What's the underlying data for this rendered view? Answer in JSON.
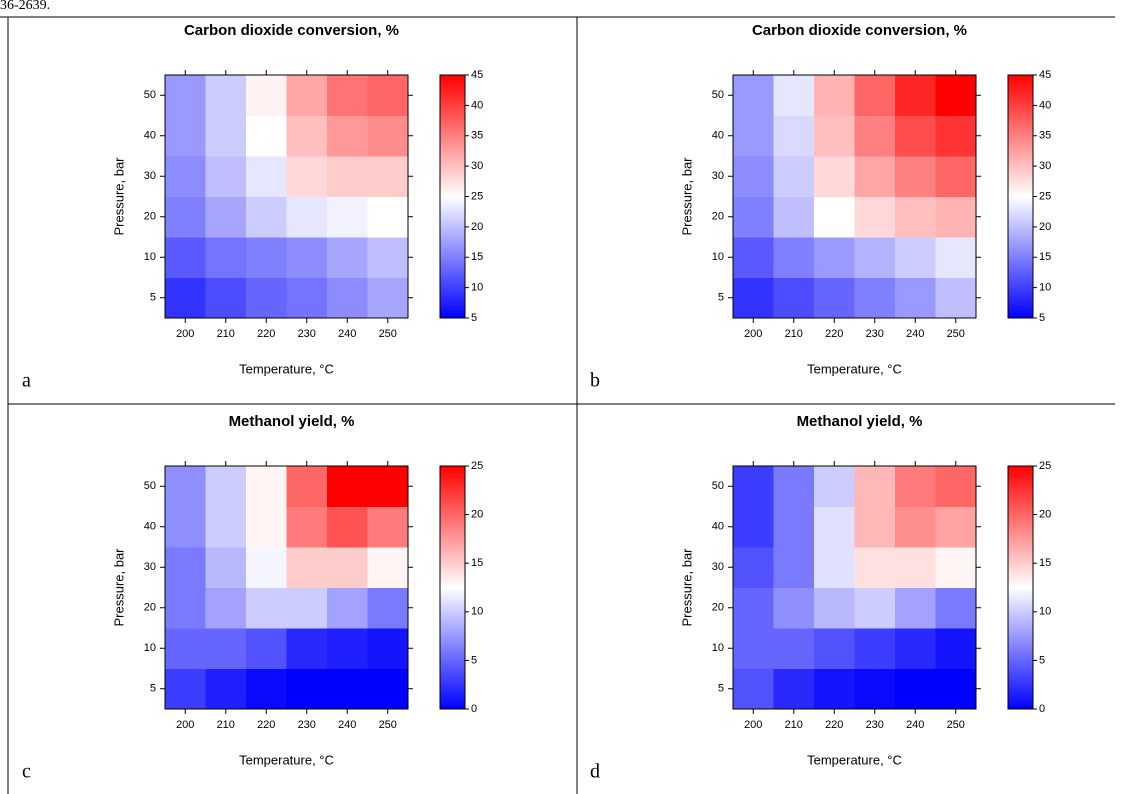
{
  "page_text": "36-2639.",
  "chart_data": [
    {
      "type": "heatmap",
      "title": "Carbon dioxide conversion, %",
      "x_label": "Temperature, °C",
      "y_label": "Pressure, bar",
      "panel_label": "a",
      "x": [
        200,
        210,
        220,
        230,
        240,
        250
      ],
      "y": [
        5,
        10,
        20,
        30,
        40,
        50
      ],
      "values": [
        [
          9,
          11,
          13,
          14,
          16,
          18
        ],
        [
          12,
          14,
          15,
          16,
          18,
          20
        ],
        [
          15,
          18,
          21,
          23,
          24,
          25
        ],
        [
          16,
          20,
          23,
          28,
          29,
          29
        ],
        [
          17,
          21,
          25,
          30,
          33,
          34
        ],
        [
          17,
          21,
          26,
          32,
          36,
          37
        ]
      ],
      "clim": [
        5,
        45
      ],
      "cticks": [
        5,
        10,
        15,
        20,
        25,
        30,
        35,
        40,
        45
      ],
      "colormap": [
        "#0000ff",
        "#ffffff",
        "#ff0000"
      ]
    },
    {
      "type": "heatmap",
      "title": "Carbon dioxide conversion, %",
      "x_label": "Temperature, °C",
      "y_label": "Pressure, bar",
      "panel_label": "b",
      "x": [
        200,
        210,
        220,
        230,
        240,
        250
      ],
      "y": [
        5,
        10,
        20,
        30,
        40,
        50
      ],
      "values": [
        [
          9,
          11,
          13,
          15,
          17,
          20
        ],
        [
          12,
          15,
          17,
          19,
          21,
          23
        ],
        [
          15,
          20,
          25,
          28,
          30,
          31
        ],
        [
          16,
          21,
          28,
          32,
          35,
          37
        ],
        [
          17,
          22,
          30,
          35,
          39,
          41
        ],
        [
          17,
          23,
          31,
          37,
          42,
          45
        ]
      ],
      "clim": [
        5,
        45
      ],
      "cticks": [
        5,
        10,
        15,
        20,
        25,
        30,
        35,
        40,
        45
      ],
      "colormap": [
        "#0000ff",
        "#ffffff",
        "#ff0000"
      ]
    },
    {
      "type": "heatmap",
      "title": "Methanol yield, %",
      "x_label": "Temperature, °C",
      "y_label": "Pressure, bar",
      "panel_label": "c",
      "x": [
        200,
        210,
        220,
        230,
        240,
        250
      ],
      "y": [
        5,
        10,
        20,
        30,
        40,
        50
      ],
      "values": [
        [
          3,
          1.5,
          0.5,
          0,
          0,
          0
        ],
        [
          5,
          5,
          4,
          2,
          1.5,
          1
        ],
        [
          6,
          8,
          10,
          10,
          8,
          6
        ],
        [
          6,
          9,
          12,
          15,
          15,
          13
        ],
        [
          7,
          10,
          13,
          19,
          21,
          19
        ],
        [
          7,
          10,
          13,
          20,
          25,
          25
        ]
      ],
      "clim": [
        0,
        25
      ],
      "cticks": [
        0,
        5,
        10,
        15,
        20,
        25
      ],
      "colormap": [
        "#0000ff",
        "#ffffff",
        "#ff0000"
      ]
    },
    {
      "type": "heatmap",
      "title": "Methanol yield, %",
      "x_label": "Temperature, °C",
      "y_label": "Pressure, bar",
      "panel_label": "d",
      "x": [
        200,
        210,
        220,
        230,
        240,
        250
      ],
      "y": [
        5,
        10,
        20,
        30,
        40,
        50
      ],
      "values": [
        [
          4,
          2,
          1,
          0.5,
          0,
          0
        ],
        [
          5,
          5,
          4,
          3,
          2,
          1
        ],
        [
          5,
          7,
          9,
          10,
          8,
          6
        ],
        [
          4,
          6,
          11,
          14,
          14,
          13
        ],
        [
          3,
          6,
          11,
          16,
          18,
          17
        ],
        [
          3,
          6,
          10,
          16,
          19,
          20
        ]
      ],
      "clim": [
        0,
        25
      ],
      "cticks": [
        0,
        5,
        10,
        15,
        20,
        25
      ],
      "colormap": [
        "#0000ff",
        "#ffffff",
        "#ff0000"
      ]
    }
  ]
}
